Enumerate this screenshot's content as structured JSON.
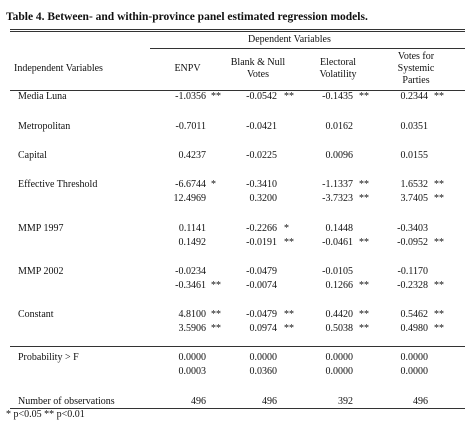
{
  "title": "Table 4. Between- and within-province panel estimated regression models.",
  "table": {
    "group_header": "Dependent Variables",
    "columns": [
      "Independent Variables",
      "ENPV",
      "Blank & Null Votes",
      "Electoral Volatility",
      "Votes for Systemic Parties"
    ],
    "rows": [
      {
        "label": "Media Luna",
        "lines": [
          [
            {
              "v": "-1.0356",
              "s": "**"
            },
            {
              "v": "-0.0542",
              "s": "**"
            },
            {
              "v": "-0.1435",
              "s": "**"
            },
            {
              "v": "0.2344",
              "s": "**"
            }
          ]
        ]
      },
      {
        "label": "Metropolitan",
        "lines": [
          [
            {
              "v": "-0.7011"
            },
            {
              "v": "-0.0421"
            },
            {
              "v": "0.0162"
            },
            {
              "v": "0.0351"
            }
          ]
        ]
      },
      {
        "label": "Capital",
        "lines": [
          [
            {
              "v": "0.4237"
            },
            {
              "v": "-0.0225"
            },
            {
              "v": "0.0096"
            },
            {
              "v": "0.0155"
            }
          ]
        ]
      },
      {
        "label": "Effective Threshold",
        "lines": [
          [
            {
              "v": "-6.6744",
              "s": "*"
            },
            {
              "v": "-0.3410"
            },
            {
              "v": "-1.1337",
              "s": "**"
            },
            {
              "v": "1.6532",
              "s": "**"
            }
          ],
          [
            {
              "v": "12.4969"
            },
            {
              "v": "0.3200"
            },
            {
              "v": "-3.7323",
              "s": "**"
            },
            {
              "v": "3.7405",
              "s": "**"
            }
          ]
        ]
      },
      {
        "label": "MMP 1997",
        "lines": [
          [
            {
              "v": "0.1141"
            },
            {
              "v": "-0.2266",
              "s": "*"
            },
            {
              "v": "0.1448"
            },
            {
              "v": "-0.3403"
            }
          ],
          [
            {
              "v": "0.1492"
            },
            {
              "v": "-0.0191",
              "s": "**"
            },
            {
              "v": "-0.0461",
              "s": "**"
            },
            {
              "v": "-0.0952",
              "s": "**"
            }
          ]
        ]
      },
      {
        "label": "MMP 2002",
        "lines": [
          [
            {
              "v": "-0.0234"
            },
            {
              "v": "-0.0479"
            },
            {
              "v": "-0.0105"
            },
            {
              "v": "-0.1170"
            }
          ],
          [
            {
              "v": "-0.3461",
              "s": "**"
            },
            {
              "v": "-0.0074"
            },
            {
              "v": "0.1266",
              "s": "**"
            },
            {
              "v": "-0.2328",
              "s": "**"
            }
          ]
        ]
      },
      {
        "label": "Constant",
        "lines": [
          [
            {
              "v": "4.8100",
              "s": "**"
            },
            {
              "v": "-0.0479",
              "s": "**"
            },
            {
              "v": "0.4420",
              "s": "**"
            },
            {
              "v": "0.5462",
              "s": "**"
            }
          ],
          [
            {
              "v": "3.5906",
              "s": "**"
            },
            {
              "v": "0.0974",
              "s": "**"
            },
            {
              "v": "0.5038",
              "s": "**"
            },
            {
              "v": "0.4980",
              "s": "**"
            }
          ]
        ]
      },
      {
        "label": "Probability > F",
        "lines": [
          [
            {
              "v": "0.0000"
            },
            {
              "v": "0.0000"
            },
            {
              "v": "0.0000"
            },
            {
              "v": "0.0000"
            }
          ],
          [
            {
              "v": "0.0003"
            },
            {
              "v": "0.0360"
            },
            {
              "v": "0.0000"
            },
            {
              "v": "0.0000"
            }
          ]
        ]
      },
      {
        "label": "Number of observations",
        "lines": [
          [
            {
              "v": "496"
            },
            {
              "v": "496"
            },
            {
              "v": "392"
            },
            {
              "v": "496"
            }
          ]
        ]
      }
    ]
  },
  "footnote": "* p<0.05 ** p<0.01"
}
